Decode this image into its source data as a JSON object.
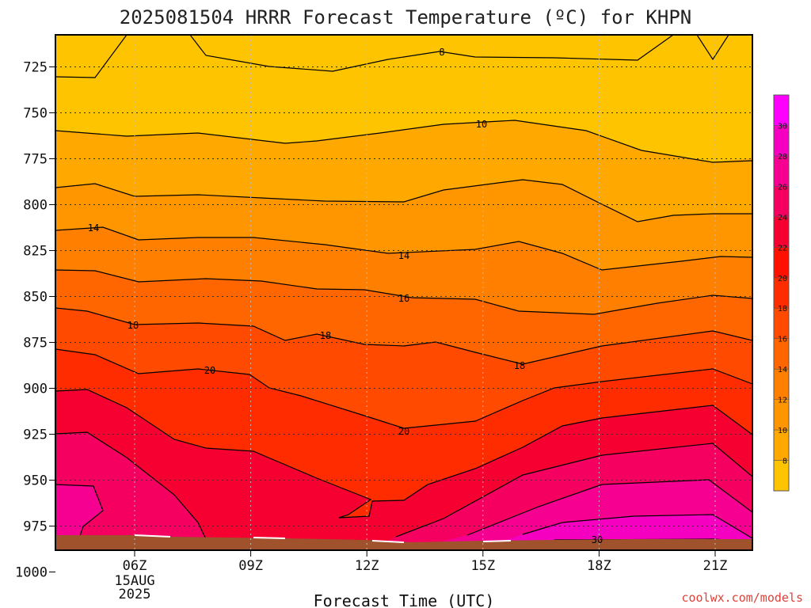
{
  "chart_data": {
    "type": "contour",
    "title": "2025081504 HRRR Forecast Temperature (ºC) for KHPN",
    "xlabel": "Forecast Time (UTC)",
    "ylabel": "",
    "x_ticks": [
      "06Z",
      "09Z",
      "12Z",
      "15Z",
      "18Z",
      "21Z"
    ],
    "x_sublabels": [
      "15AUG",
      "2025"
    ],
    "y_ticks": [
      725,
      750,
      775,
      800,
      825,
      850,
      875,
      900,
      925,
      950,
      975,
      1000
    ],
    "y_axis": "pressure (hPa), inverted",
    "ylim": [
      1003,
      712
    ],
    "grid": true,
    "contour_interval": 2,
    "contour_labels": [
      "8",
      "10",
      "14",
      "14",
      "16",
      "18",
      "18",
      "18",
      "20",
      "20",
      "30"
    ],
    "colorbar": {
      "ticks": [
        8,
        10,
        12,
        14,
        16,
        18,
        20,
        22,
        24,
        26,
        28,
        30
      ],
      "colors": [
        "#ffc400",
        "#ffa800",
        "#ff9600",
        "#ff8000",
        "#ff6600",
        "#ff4a00",
        "#ff2c00",
        "#ff1000",
        "#f50030",
        "#f50060",
        "#f50090",
        "#f500c0",
        "#ff00ff"
      ]
    },
    "ground_color": "#a0522d",
    "credit": "coolwx.com/models"
  }
}
